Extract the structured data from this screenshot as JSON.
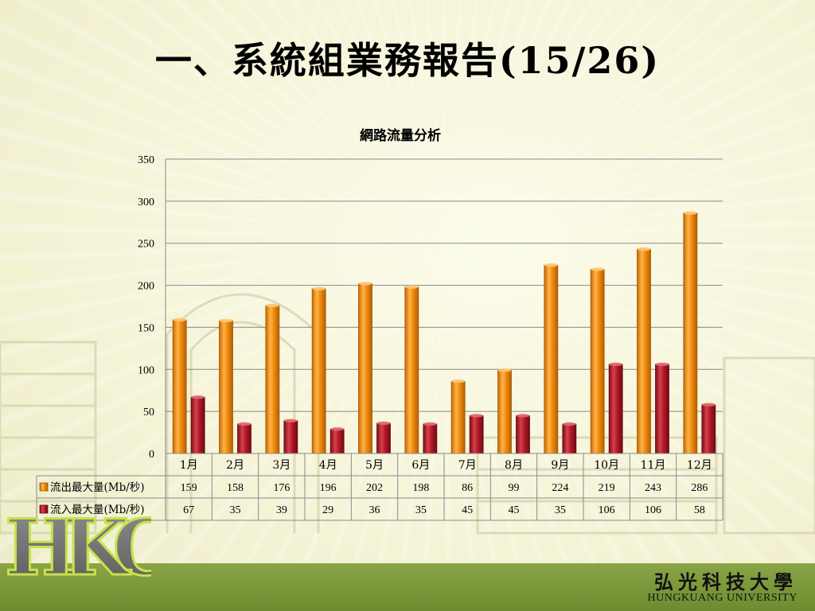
{
  "slide": {
    "title": "一、系統組業務報告(15/26)"
  },
  "university": {
    "name_zh": "弘光科技大學",
    "name_en": "HUNGKUANG UNIVERSITY",
    "logo_text": "HKC"
  },
  "colors": {
    "series1": "#f08c10",
    "series2": "#b41a28",
    "footer": "#7a9a3a"
  },
  "chart_data": {
    "type": "bar",
    "title": "網路流量分析",
    "categories": [
      "1月",
      "2月",
      "3月",
      "4月",
      "5月",
      "6月",
      "7月",
      "8月",
      "9月",
      "10月",
      "11月",
      "12月"
    ],
    "series": [
      {
        "name": "流出最大量(Mb/秒)",
        "values": [
          159,
          158,
          176,
          196,
          202,
          198,
          86,
          99,
          224,
          219,
          243,
          286
        ]
      },
      {
        "name": "流入最大量(Mb/秒)",
        "values": [
          67,
          35,
          39,
          29,
          36,
          35,
          45,
          45,
          35,
          106,
          106,
          58
        ]
      }
    ],
    "y_ticks": [
      "0",
      "50",
      "100",
      "150",
      "200",
      "250",
      "300",
      "350"
    ],
    "ylim": [
      0,
      350
    ],
    "grid": true,
    "legend": "data-table"
  }
}
